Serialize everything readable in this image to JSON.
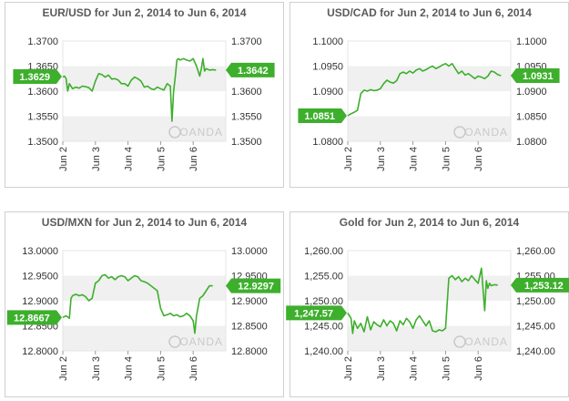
{
  "colors": {
    "line": "#3daf2c",
    "badge": "#3daf2c",
    "band": "#f0f0f0",
    "grid": "#e4e4e4"
  },
  "watermark": "OANDA",
  "chart_data": [
    {
      "type": "line",
      "title": "EUR/USD for Jun 2, 2014 to Jun 6, 2014",
      "yticks": [
        "1.3700",
        "1.3650",
        "1.3600",
        "1.3550",
        "1.3500"
      ],
      "ylim": [
        1.35,
        1.37
      ],
      "xticks": [
        "Jun 2",
        "Jun 3",
        "Jun 4",
        "Jun 5",
        "Jun 6"
      ],
      "xlim": [
        0,
        5
      ],
      "open_label": "1.3629",
      "open_value": 1.3629,
      "last_label": "1.3642",
      "last_value": 1.3642,
      "x": [
        0.0,
        0.05,
        0.1,
        0.15,
        0.2,
        0.3,
        0.4,
        0.5,
        0.6,
        0.7,
        0.8,
        0.9,
        1.0,
        1.1,
        1.2,
        1.3,
        1.4,
        1.5,
        1.6,
        1.7,
        1.8,
        1.9,
        2.0,
        2.1,
        2.2,
        2.3,
        2.4,
        2.5,
        2.6,
        2.7,
        2.8,
        2.9,
        3.0,
        3.1,
        3.2,
        3.3,
        3.35,
        3.4,
        3.45,
        3.5,
        3.55,
        3.6,
        3.7,
        3.8,
        3.9,
        4.0,
        4.1,
        4.2,
        4.25,
        4.3,
        4.35,
        4.4,
        4.5,
        4.6,
        4.7
      ],
      "y": [
        1.3628,
        1.363,
        1.3625,
        1.36,
        1.3615,
        1.3605,
        1.3608,
        1.3606,
        1.361,
        1.3609,
        1.3607,
        1.36,
        1.362,
        1.3635,
        1.3633,
        1.3628,
        1.3632,
        1.3624,
        1.3625,
        1.3622,
        1.3615,
        1.3615,
        1.361,
        1.3622,
        1.3628,
        1.3625,
        1.362,
        1.3608,
        1.361,
        1.3605,
        1.3603,
        1.3608,
        1.3605,
        1.3602,
        1.3615,
        1.361,
        1.354,
        1.36,
        1.3628,
        1.3662,
        1.3665,
        1.3662,
        1.3665,
        1.3662,
        1.366,
        1.3665,
        1.365,
        1.363,
        1.3645,
        1.3665,
        1.364,
        1.3645,
        1.3642,
        1.3643,
        1.3642
      ]
    },
    {
      "type": "line",
      "title": "USD/CAD for Jun 2, 2014 to Jun 6, 2014",
      "yticks": [
        "1.1000",
        "1.0950",
        "1.0900",
        "1.0850",
        "1.0800"
      ],
      "ylim": [
        1.08,
        1.1
      ],
      "xticks": [
        "Jun 2",
        "Jun 3",
        "Jun 4",
        "Jun 5",
        "Jun 6"
      ],
      "xlim": [
        0,
        5
      ],
      "open_label": "1.0851",
      "open_value": 1.0851,
      "last_label": "1.0931",
      "last_value": 1.0931,
      "x": [
        0.0,
        0.1,
        0.2,
        0.3,
        0.4,
        0.5,
        0.6,
        0.7,
        0.8,
        0.9,
        1.0,
        1.1,
        1.2,
        1.3,
        1.4,
        1.5,
        1.6,
        1.7,
        1.8,
        1.9,
        2.0,
        2.1,
        2.2,
        2.3,
        2.4,
        2.5,
        2.6,
        2.7,
        2.8,
        2.9,
        3.0,
        3.1,
        3.2,
        3.3,
        3.4,
        3.5,
        3.6,
        3.7,
        3.8,
        3.9,
        4.0,
        4.1,
        4.2,
        4.3,
        4.4,
        4.5,
        4.6,
        4.7
      ],
      "y": [
        1.0851,
        1.0855,
        1.0858,
        1.0862,
        1.0895,
        1.0902,
        1.09,
        1.0903,
        1.0901,
        1.0902,
        1.0905,
        1.0915,
        1.0922,
        1.0918,
        1.0916,
        1.0921,
        1.0935,
        1.0938,
        1.0935,
        1.094,
        1.0936,
        1.0942,
        1.0945,
        1.094,
        1.0943,
        1.0947,
        1.095,
        1.0945,
        1.0948,
        1.0952,
        1.0955,
        1.095,
        1.0955,
        1.0945,
        1.0935,
        1.094,
        1.0932,
        1.0935,
        1.093,
        1.0925,
        1.093,
        1.0928,
        1.0925,
        1.093,
        1.094,
        1.0938,
        1.0933,
        1.0931
      ]
    },
    {
      "type": "line",
      "title": "USD/MXN for Jun 2, 2014 to Jun 6, 2014",
      "yticks": [
        "13.0000",
        "12.9500",
        "12.9000",
        "12.8500",
        "12.8000"
      ],
      "ylim": [
        12.8,
        13.0
      ],
      "xticks": [
        "Jun 2",
        "Jun 3",
        "Jun 4",
        "Jun 5",
        "Jun 6"
      ],
      "xlim": [
        0,
        5
      ],
      "open_label": "12.8667",
      "open_value": 12.8667,
      "last_label": "12.9297",
      "last_value": 12.9297,
      "x": [
        0.0,
        0.1,
        0.2,
        0.25,
        0.3,
        0.4,
        0.5,
        0.6,
        0.7,
        0.8,
        0.9,
        1.0,
        1.1,
        1.2,
        1.3,
        1.4,
        1.5,
        1.6,
        1.7,
        1.8,
        1.9,
        2.0,
        2.1,
        2.2,
        2.3,
        2.4,
        2.5,
        2.6,
        2.7,
        2.8,
        2.9,
        3.0,
        3.1,
        3.2,
        3.3,
        3.4,
        3.5,
        3.6,
        3.7,
        3.8,
        3.9,
        4.0,
        4.05,
        4.1,
        4.2,
        4.3,
        4.4,
        4.5,
        4.6
      ],
      "y": [
        12.8667,
        12.87,
        12.865,
        12.905,
        12.91,
        12.913,
        12.91,
        12.912,
        12.908,
        12.9,
        12.905,
        12.935,
        12.94,
        12.95,
        12.952,
        12.945,
        12.948,
        12.942,
        12.948,
        12.95,
        12.948,
        12.94,
        12.945,
        12.95,
        12.948,
        12.94,
        12.938,
        12.935,
        12.93,
        12.925,
        12.92,
        12.885,
        12.87,
        12.872,
        12.875,
        12.87,
        12.872,
        12.868,
        12.87,
        12.875,
        12.87,
        12.86,
        12.835,
        12.87,
        12.905,
        12.91,
        12.92,
        12.93,
        12.9297
      ]
    },
    {
      "type": "line",
      "title": "Gold for Jun 2, 2014 to Jun 6, 2014",
      "yticks": [
        "1,260.00",
        "1,255.00",
        "1,250.00",
        "1,245.00",
        "1,240.00"
      ],
      "ylim": [
        1240,
        1260
      ],
      "xticks": [
        "Jun 2",
        "Jun 3",
        "Jun 4",
        "Jun 5",
        "Jun 6"
      ],
      "xlim": [
        0,
        5
      ],
      "open_label": "1,247.57",
      "open_value": 1247.57,
      "last_label": "1,253.12",
      "last_value": 1253.12,
      "x": [
        0.0,
        0.1,
        0.15,
        0.2,
        0.3,
        0.4,
        0.5,
        0.6,
        0.7,
        0.8,
        0.9,
        1.0,
        1.1,
        1.2,
        1.3,
        1.4,
        1.5,
        1.6,
        1.7,
        1.8,
        1.9,
        2.0,
        2.1,
        2.2,
        2.3,
        2.4,
        2.5,
        2.6,
        2.7,
        2.8,
        2.9,
        3.0,
        3.1,
        3.2,
        3.3,
        3.4,
        3.5,
        3.6,
        3.7,
        3.8,
        3.9,
        4.0,
        4.1,
        4.2,
        4.25,
        4.3,
        4.35,
        4.4,
        4.5,
        4.6
      ],
      "y": [
        1247.57,
        1246.5,
        1243.5,
        1246.0,
        1244.5,
        1245.5,
        1243.8,
        1246.8,
        1244.2,
        1245.8,
        1245.2,
        1244.8,
        1246.2,
        1245.0,
        1246.0,
        1245.5,
        1244.0,
        1246.0,
        1245.2,
        1246.5,
        1245.8,
        1244.5,
        1246.2,
        1247.0,
        1246.0,
        1245.0,
        1246.0,
        1244.0,
        1243.8,
        1244.2,
        1244.0,
        1244.5,
        1254.5,
        1255.0,
        1254.2,
        1254.8,
        1253.8,
        1254.5,
        1254.0,
        1255.0,
        1254.2,
        1253.5,
        1256.5,
        1248.0,
        1254.0,
        1252.5,
        1253.5,
        1253.0,
        1253.2,
        1253.12
      ]
    }
  ]
}
